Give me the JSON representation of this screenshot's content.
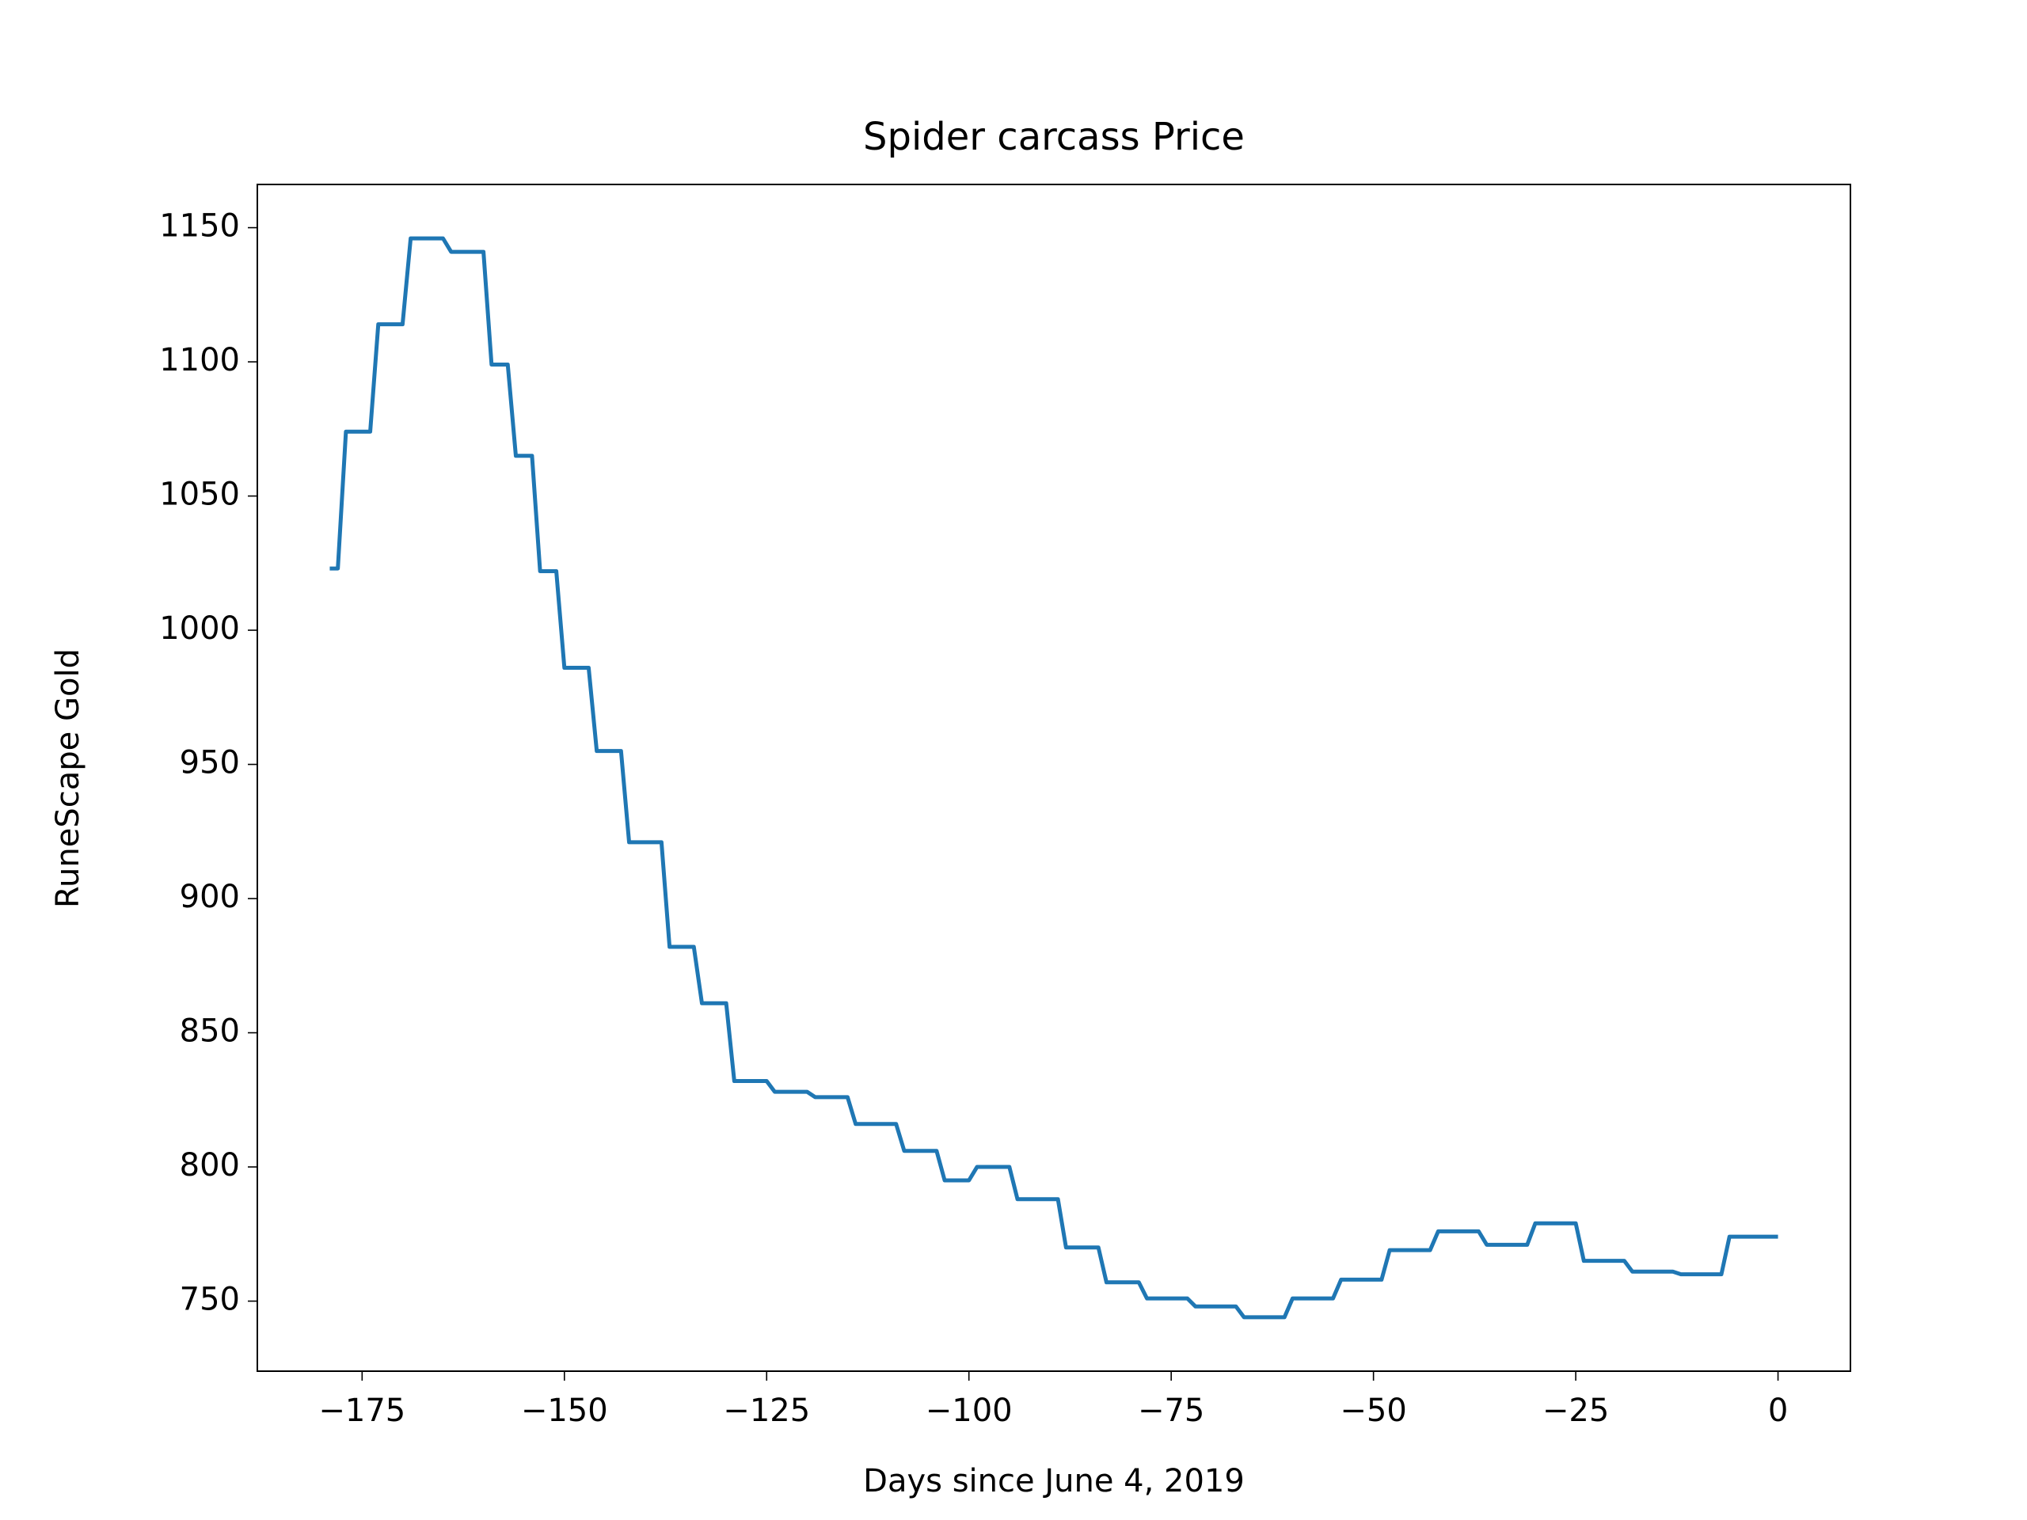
{
  "chart_data": {
    "type": "line",
    "title": "Spider carcass Price",
    "xlabel": "Days since June 4, 2019",
    "ylabel": "RuneScape Gold",
    "color": "#1f77b4",
    "x": [
      -179,
      -178,
      -177,
      -176,
      -175,
      -174,
      -173,
      -172,
      -171,
      -170,
      -169,
      -168,
      -167,
      -166,
      -165,
      -164,
      -163,
      -162,
      -161,
      -160,
      -159,
      -158,
      -157,
      -156,
      -155,
      -154,
      -153,
      -152,
      -151,
      -150,
      -149,
      -148,
      -147,
      -146,
      -145,
      -144,
      -143,
      -142,
      -141,
      -140,
      -139,
      -138,
      -137,
      -136,
      -135,
      -134,
      -133,
      -132,
      -131,
      -130,
      -129,
      -128,
      -127,
      -126,
      -125,
      -124,
      -123,
      -122,
      -121,
      -120,
      -119,
      -118,
      -117,
      -116,
      -115,
      -114,
      -113,
      -112,
      -111,
      -110,
      -109,
      -108,
      -107,
      -106,
      -105,
      -104,
      -103,
      -102,
      -101,
      -100,
      -99,
      -98,
      -97,
      -96,
      -95,
      -94,
      -93,
      -92,
      -91,
      -90,
      -89,
      -88,
      -87,
      -86,
      -85,
      -84,
      -83,
      -82,
      -81,
      -80,
      -79,
      -78,
      -77,
      -76,
      -75,
      -74,
      -73,
      -72,
      -71,
      -70,
      -69,
      -68,
      -67,
      -66,
      -65,
      -64,
      -63,
      -62,
      -61,
      -60,
      -59,
      -58,
      -57,
      -56,
      -55,
      -54,
      -53,
      -52,
      -51,
      -50,
      -49,
      -48,
      -47,
      -46,
      -45,
      -44,
      -43,
      -42,
      -41,
      -40,
      -39,
      -38,
      -37,
      -36,
      -35,
      -34,
      -33,
      -32,
      -31,
      -30,
      -29,
      -28,
      -27,
      -26,
      -25,
      -24,
      -23,
      -22,
      -21,
      -20,
      -19,
      -18,
      -17,
      -16,
      -15,
      -14,
      -13,
      -12,
      -11,
      -10,
      -9,
      -8,
      -7,
      -6,
      -5,
      -4,
      -3,
      -2,
      -1,
      0
    ],
    "values": [
      1023,
      1023,
      1074,
      1074,
      1074,
      1074,
      1114,
      1114,
      1114,
      1114,
      1146,
      1146,
      1146,
      1146,
      1146,
      1141,
      1141,
      1141,
      1141,
      1141,
      1099,
      1099,
      1099,
      1065,
      1065,
      1065,
      1022,
      1022,
      1022,
      986,
      986,
      986,
      986,
      955,
      955,
      955,
      955,
      921,
      921,
      921,
      921,
      921,
      882,
      882,
      882,
      882,
      861,
      861,
      861,
      861,
      832,
      832,
      832,
      832,
      832,
      828,
      828,
      828,
      828,
      828,
      826,
      826,
      826,
      826,
      826,
      816,
      816,
      816,
      816,
      816,
      816,
      806,
      806,
      806,
      806,
      806,
      795,
      795,
      795,
      795,
      800,
      800,
      800,
      800,
      800,
      788,
      788,
      788,
      788,
      788,
      788,
      770,
      770,
      770,
      770,
      770,
      757,
      757,
      757,
      757,
      757,
      751,
      751,
      751,
      751,
      751,
      751,
      748,
      748,
      748,
      748,
      748,
      748,
      744,
      744,
      744,
      744,
      744,
      744,
      751,
      751,
      751,
      751,
      751,
      751,
      758,
      758,
      758,
      758,
      758,
      758,
      769,
      769,
      769,
      769,
      769,
      769,
      776,
      776,
      776,
      776,
      776,
      776,
      771,
      771,
      771,
      771,
      771,
      771,
      779,
      779,
      779,
      779,
      779,
      779,
      765,
      765,
      765,
      765,
      765,
      765,
      761,
      761,
      761,
      761,
      761,
      761,
      760,
      760,
      760,
      760,
      760,
      760,
      774,
      774,
      774,
      774,
      774,
      774,
      774
    ],
    "xlim": [
      -187.95,
      8.95
    ],
    "xticks": [
      {
        "value": -175,
        "label": "−175"
      },
      {
        "value": -150,
        "label": "−150"
      },
      {
        "value": -125,
        "label": "−125"
      },
      {
        "value": -100,
        "label": "−100"
      },
      {
        "value": -75,
        "label": "−75"
      },
      {
        "value": -50,
        "label": "−50"
      },
      {
        "value": -25,
        "label": "−25"
      },
      0
    ],
    "ylim": [
      723.9,
      1166.1
    ],
    "yticks": [
      750,
      800,
      850,
      900,
      950,
      1000,
      1050,
      1100,
      1150
    ]
  }
}
